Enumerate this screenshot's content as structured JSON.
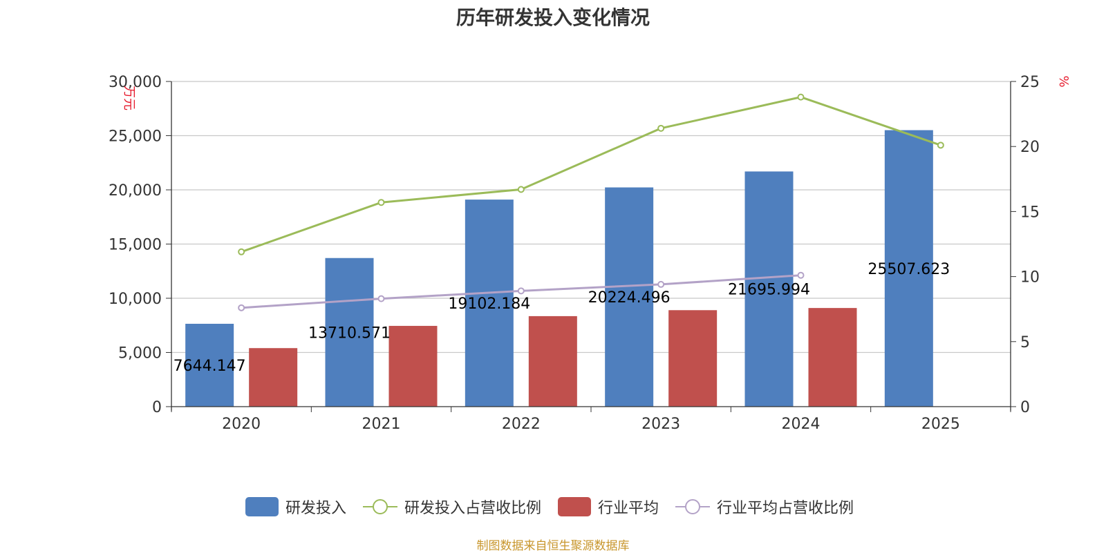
{
  "title": "历年研发投入变化情况",
  "source": "制图数据来自恒生聚源数据库",
  "chart_data": {
    "type": "bar",
    "categories": [
      "2020",
      "2021",
      "2022",
      "2023",
      "2024",
      "2025"
    ],
    "y_left": {
      "unit": "万元",
      "ylim": [
        0,
        30000
      ],
      "ticks": [
        "0",
        "5,000",
        "10,000",
        "15,000",
        "20,000",
        "25,000",
        "30,000"
      ]
    },
    "y_right": {
      "unit": "%",
      "ylim": [
        0,
        25
      ],
      "ticks": [
        "0",
        "5",
        "10",
        "15",
        "20",
        "25"
      ]
    },
    "grid": true,
    "legend_position": "bottom",
    "series": [
      {
        "name": "研发投入",
        "kind": "bar",
        "axis": "left",
        "color": "#4f7fbe",
        "values": [
          7644.147,
          13710.571,
          19102.184,
          20224.496,
          21695.994,
          25507.623
        ],
        "labels": [
          "7644.147",
          "13710.571",
          "19102.184",
          "20224.496",
          "21695.994",
          "25507.623"
        ]
      },
      {
        "name": "研发投入占营收比例",
        "kind": "line",
        "axis": "right",
        "color": "#9bbb59",
        "values": [
          11.9,
          15.7,
          16.7,
          21.4,
          23.8,
          20.1
        ]
      },
      {
        "name": "行业平均",
        "kind": "bar",
        "axis": "left",
        "color": "#c0504d",
        "values": [
          5400,
          7450,
          8350,
          8900,
          9100,
          null
        ]
      },
      {
        "name": "行业平均占营收比例",
        "kind": "line",
        "axis": "right",
        "color": "#b3a2c7",
        "values": [
          7.6,
          8.3,
          8.9,
          9.4,
          10.1,
          null
        ]
      }
    ]
  }
}
